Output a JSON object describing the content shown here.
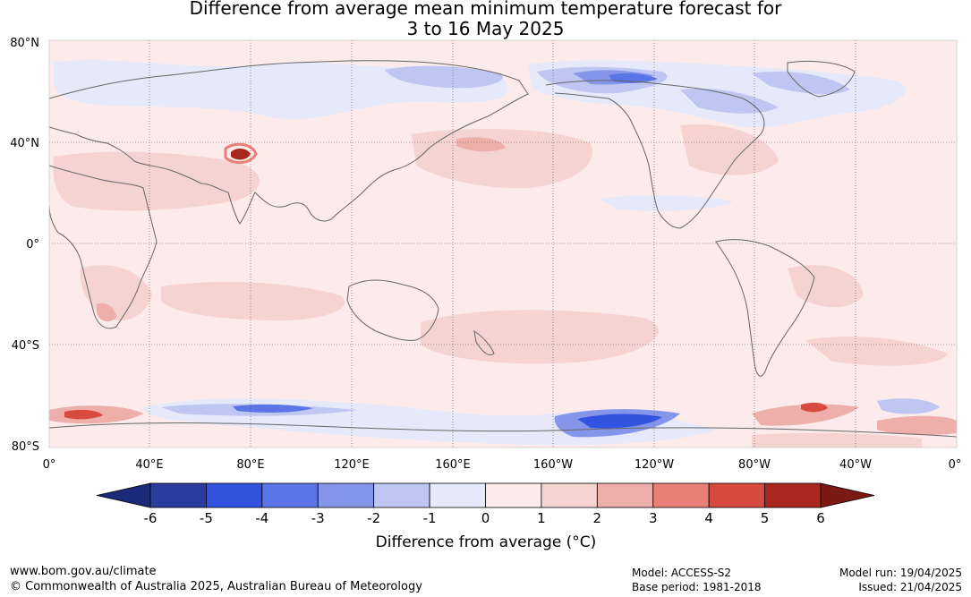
{
  "title": {
    "line1": "Difference from average mean minimum temperature forecast for",
    "line2": "3 to 16 May 2025"
  },
  "map": {
    "lat_labels": [
      "80°N",
      "40°N",
      "0°",
      "40°S",
      "80°S"
    ],
    "lon_labels": [
      "0°",
      "40°E",
      "80°E",
      "120°E",
      "160°E",
      "160°W",
      "120°W",
      "80°W",
      "40°W",
      "0°"
    ]
  },
  "colorbar": {
    "ticks": [
      "-6",
      "-5",
      "-4",
      "-3",
      "-2",
      "-1",
      "0",
      "1",
      "2",
      "3",
      "4",
      "5",
      "6"
    ],
    "colors": [
      "#2a3d9e",
      "#3253e0",
      "#5b74e6",
      "#8595ea",
      "#bfc6f2",
      "#e6e9fa",
      "#fcebea",
      "#f5d3d1",
      "#eeaeaa",
      "#e88078",
      "#d94a3e",
      "#a8281f"
    ],
    "low_extend_color": "#1a2a78",
    "high_extend_color": "#7a1a12",
    "label": "Difference from average (°C)"
  },
  "footer": {
    "url": "www.bom.gov.au/climate",
    "copyright": "© Commonwealth of Australia 2025, Australian Bureau of Meteorology",
    "model": "Model: ACCESS-S2",
    "base_period": "Base period: 1981-2018",
    "model_run": "Model run: 19/04/2025",
    "issued": "Issued: 21/04/2025"
  }
}
